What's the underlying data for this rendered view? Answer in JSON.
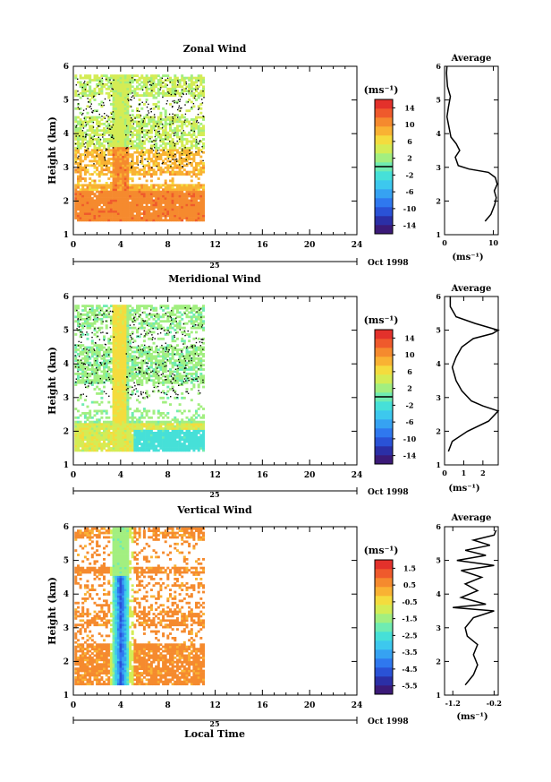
{
  "figure": {
    "date_label": "Oct 1998",
    "day_label": "25",
    "xlabel": "Local Time",
    "ylabel": "Height (km)",
    "unit_label": "(ms⁻¹)",
    "avg_title": "Average",
    "colormap": [
      "#3b1a78",
      "#2b2fa6",
      "#2a52d6",
      "#2f78ef",
      "#36a2f2",
      "#3dc8ee",
      "#46e0d8",
      "#6fecb2",
      "#a2ef80",
      "#d4ec55",
      "#f4dc3e",
      "#f9b233",
      "#f58a2e",
      "#ef5a2c",
      "#e3312b"
    ]
  },
  "chart_data": [
    {
      "type": "heatmap",
      "title": "Zonal Wind",
      "xlabel": "",
      "ylabel": "Height (km)",
      "xlim": [
        0,
        24
      ],
      "ylim": [
        1,
        6
      ],
      "xticks": [
        0,
        4,
        8,
        12,
        16,
        20,
        24
      ],
      "yticks": [
        1,
        2,
        3,
        4,
        5,
        6
      ],
      "data_x_range": [
        0.1,
        11.0
      ],
      "data_y_range": [
        1.4,
        5.7
      ],
      "colorbar": {
        "label": "(ms⁻¹)",
        "min": -16,
        "max": 16,
        "ticks": [
          14,
          10,
          6,
          2,
          -2,
          -6,
          -10,
          -14
        ]
      },
      "pattern": "zonal",
      "profile": {
        "title": "Average",
        "xlabel": "(ms⁻¹)",
        "xlim": [
          0,
          11
        ],
        "xticks": [
          0,
          10
        ],
        "ylim": [
          1,
          6
        ],
        "points": [
          [
            8.3,
            1.4
          ],
          [
            9.5,
            1.6
          ],
          [
            10.3,
            1.9
          ],
          [
            10.6,
            2.1
          ],
          [
            10.2,
            2.3
          ],
          [
            10.8,
            2.5
          ],
          [
            10.4,
            2.7
          ],
          [
            9.0,
            2.85
          ],
          [
            5.0,
            2.95
          ],
          [
            2.8,
            3.05
          ],
          [
            2.2,
            3.3
          ],
          [
            3.1,
            3.5
          ],
          [
            2.4,
            3.7
          ],
          [
            1.3,
            3.9
          ],
          [
            0.9,
            4.2
          ],
          [
            0.5,
            4.5
          ],
          [
            0.8,
            4.8
          ],
          [
            1.2,
            5.1
          ],
          [
            0.6,
            5.4
          ],
          [
            0.5,
            5.6
          ],
          [
            0.4,
            5.8
          ],
          [
            0.5,
            6.0
          ]
        ]
      }
    },
    {
      "type": "heatmap",
      "title": "Meridional Wind",
      "xlabel": "",
      "ylabel": "Height (km)",
      "xlim": [
        0,
        24
      ],
      "ylim": [
        1,
        6
      ],
      "xticks": [
        0,
        4,
        8,
        12,
        16,
        20,
        24
      ],
      "yticks": [
        1,
        2,
        3,
        4,
        5,
        6
      ],
      "data_x_range": [
        0.1,
        11.0
      ],
      "data_y_range": [
        1.4,
        5.7
      ],
      "colorbar": {
        "label": "(ms⁻¹)",
        "min": -16,
        "max": 16,
        "ticks": [
          14,
          10,
          6,
          2,
          -2,
          -6,
          -10,
          -14
        ]
      },
      "pattern": "meridional",
      "profile": {
        "title": "Average",
        "xlabel": "(ms⁻¹)",
        "xlim": [
          0,
          2.8
        ],
        "xticks": [
          0,
          1,
          2
        ],
        "ylim": [
          1,
          6
        ],
        "points": [
          [
            0.2,
            1.4
          ],
          [
            0.4,
            1.7
          ],
          [
            1.2,
            2.0
          ],
          [
            2.3,
            2.3
          ],
          [
            2.8,
            2.6
          ],
          [
            2.0,
            2.75
          ],
          [
            1.4,
            2.9
          ],
          [
            0.9,
            3.2
          ],
          [
            0.6,
            3.5
          ],
          [
            0.4,
            3.9
          ],
          [
            0.6,
            4.2
          ],
          [
            0.9,
            4.5
          ],
          [
            1.5,
            4.75
          ],
          [
            2.5,
            4.9
          ],
          [
            2.8,
            5.0
          ],
          [
            1.6,
            5.2
          ],
          [
            0.6,
            5.4
          ],
          [
            0.3,
            5.7
          ],
          [
            0.3,
            6.0
          ]
        ]
      }
    },
    {
      "type": "heatmap",
      "title": "Vertical Wind",
      "xlabel": "Local Time",
      "ylabel": "Height (km)",
      "xlim": [
        0,
        24
      ],
      "ylim": [
        1,
        6
      ],
      "xticks": [
        0,
        4,
        8,
        12,
        16,
        20,
        24
      ],
      "yticks": [
        1,
        2,
        3,
        4,
        5,
        6
      ],
      "data_x_range": [
        0.1,
        11.0
      ],
      "data_y_range": [
        1.3,
        5.95
      ],
      "colorbar": {
        "label": "(ms⁻¹)",
        "min": -6.0,
        "max": 2.0,
        "ticks": [
          1.5,
          0.5,
          -0.5,
          -1.5,
          -2.5,
          -3.5,
          -4.5,
          -5.5
        ]
      },
      "pattern": "vertical",
      "profile": {
        "title": "Average",
        "xlabel": "(ms⁻¹)",
        "xlim": [
          -1.4,
          -0.1
        ],
        "xticks": [
          -1.2,
          -0.2
        ],
        "ylim": [
          1,
          6
        ],
        "points": [
          [
            -0.9,
            1.3
          ],
          [
            -0.7,
            1.6
          ],
          [
            -0.6,
            1.9
          ],
          [
            -0.7,
            2.2
          ],
          [
            -0.6,
            2.5
          ],
          [
            -0.85,
            2.75
          ],
          [
            -0.9,
            3.0
          ],
          [
            -0.7,
            3.3
          ],
          [
            -0.2,
            3.5
          ],
          [
            -1.2,
            3.6
          ],
          [
            -0.4,
            3.7
          ],
          [
            -1.0,
            3.9
          ],
          [
            -0.6,
            4.1
          ],
          [
            -0.9,
            4.3
          ],
          [
            -0.5,
            4.5
          ],
          [
            -1.0,
            4.7
          ],
          [
            -0.2,
            4.85
          ],
          [
            -1.1,
            5.0
          ],
          [
            -0.4,
            5.15
          ],
          [
            -0.9,
            5.3
          ],
          [
            -0.3,
            5.45
          ],
          [
            -0.7,
            5.6
          ],
          [
            -0.2,
            5.75
          ],
          [
            -0.15,
            5.9
          ]
        ]
      }
    }
  ]
}
